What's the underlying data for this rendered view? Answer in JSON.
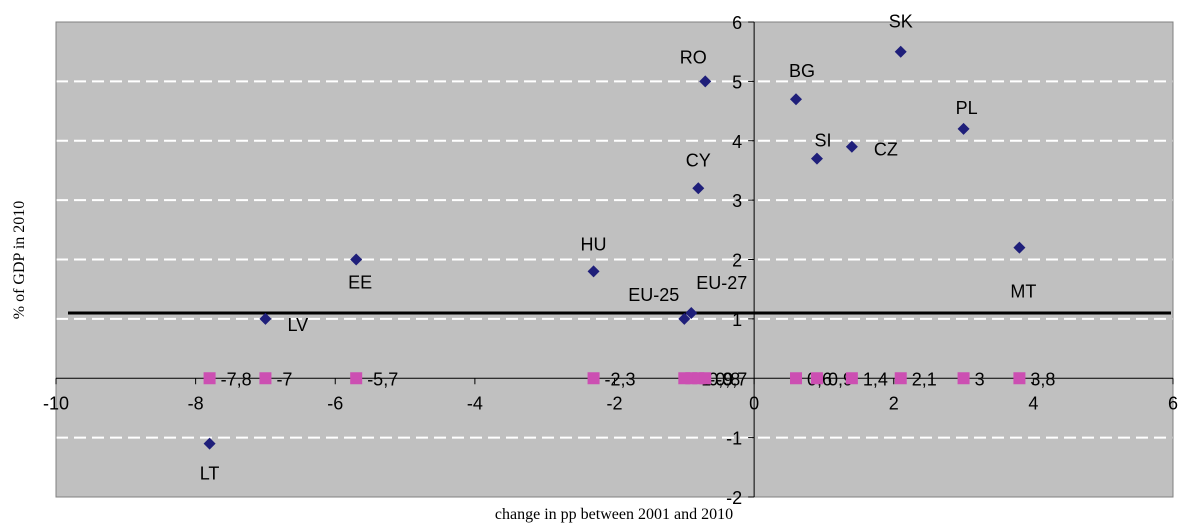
{
  "chart_data": {
    "type": "scatter",
    "title": "",
    "xlabel": "change in pp between 2001 and 2010",
    "ylabel": "% of GDP in 2010",
    "xlim": [
      -10,
      6
    ],
    "ylim": [
      -2,
      6
    ],
    "xticks": [
      -10,
      -8,
      -6,
      -4,
      -2,
      0,
      2,
      4,
      6
    ],
    "yticks": [
      -2,
      -1,
      1,
      2,
      3,
      4,
      5,
      6
    ],
    "grid": true,
    "legend": "none",
    "colors": {
      "plot_bg": "#c0c0c0",
      "grid": "#ffffff",
      "country_marker": "#1f1f7a",
      "value_marker": "#cc4fb2",
      "reference_line": "#000000"
    },
    "reference_line_y": 1.1,
    "series": [
      {
        "marker": "diamond",
        "points": [
          {
            "label": "LT",
            "x": -7.8,
            "y": -1.1
          },
          {
            "label": "LV",
            "x": -7.0,
            "y": 1.0
          },
          {
            "label": "EE",
            "x": -5.7,
            "y": 2.0
          },
          {
            "label": "HU",
            "x": -2.3,
            "y": 1.8
          },
          {
            "label": "EU-25",
            "x": -1.0,
            "y": 1.0
          },
          {
            "label": "EU-27",
            "x": -0.9,
            "y": 1.1
          },
          {
            "label": "RO",
            "x": -0.7,
            "y": 5.0
          },
          {
            "label": "CY",
            "x": -0.8,
            "y": 3.2
          },
          {
            "label": "BG",
            "x": 0.6,
            "y": 4.7
          },
          {
            "label": "SI",
            "x": 0.9,
            "y": 3.7
          },
          {
            "label": "CZ",
            "x": 1.4,
            "y": 3.9
          },
          {
            "label": "SK",
            "x": 2.1,
            "y": 5.5
          },
          {
            "label": "PL",
            "x": 3.0,
            "y": 4.2
          },
          {
            "label": "MT",
            "x": 3.8,
            "y": 2.2
          }
        ]
      },
      {
        "marker": "square",
        "points": [
          {
            "x": -7.8,
            "y": 0,
            "label": "-7,8"
          },
          {
            "x": -7.0,
            "y": 0,
            "label": "-7"
          },
          {
            "x": -5.7,
            "y": 0,
            "label": "-5,7"
          },
          {
            "x": -2.3,
            "y": 0,
            "label": "-2,3"
          },
          {
            "x": -1.0,
            "y": 0,
            "label": "-1"
          },
          {
            "x": -0.9,
            "y": 0,
            "label": "-0,9"
          },
          {
            "x": -0.8,
            "y": 0,
            "label": "-0,8"
          },
          {
            "x": -0.7,
            "y": 0,
            "label": "-0,7"
          },
          {
            "x": 0.6,
            "y": 0,
            "label": "0,6"
          },
          {
            "x": 0.9,
            "y": 0,
            "label": "0,9"
          },
          {
            "x": 1.4,
            "y": 0,
            "label": "1,4"
          },
          {
            "x": 2.1,
            "y": 0,
            "label": "2,1"
          },
          {
            "x": 3.0,
            "y": 0,
            "label": "3"
          },
          {
            "x": 3.8,
            "y": 0,
            "label": "3,8"
          }
        ]
      }
    ]
  }
}
